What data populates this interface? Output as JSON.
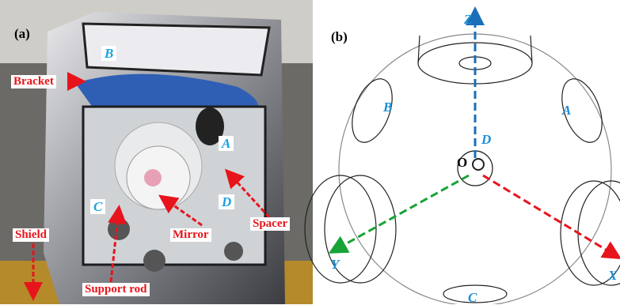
{
  "panel_a": {
    "label": "(a)",
    "letters": {
      "A": "A",
      "B": "B",
      "C": "C",
      "D": "D"
    },
    "callouts": {
      "bracket": "Bracket",
      "shield": "Shield",
      "mirror": "Mirror",
      "spacer": "Spacer",
      "support_rod": "Support rod"
    }
  },
  "panel_b": {
    "label": "(b)",
    "axes": {
      "x": "X",
      "y": "Y",
      "z": "Z"
    },
    "origin": "O",
    "letters": {
      "A": "A",
      "B": "B",
      "C": "C",
      "D": "D"
    }
  }
}
